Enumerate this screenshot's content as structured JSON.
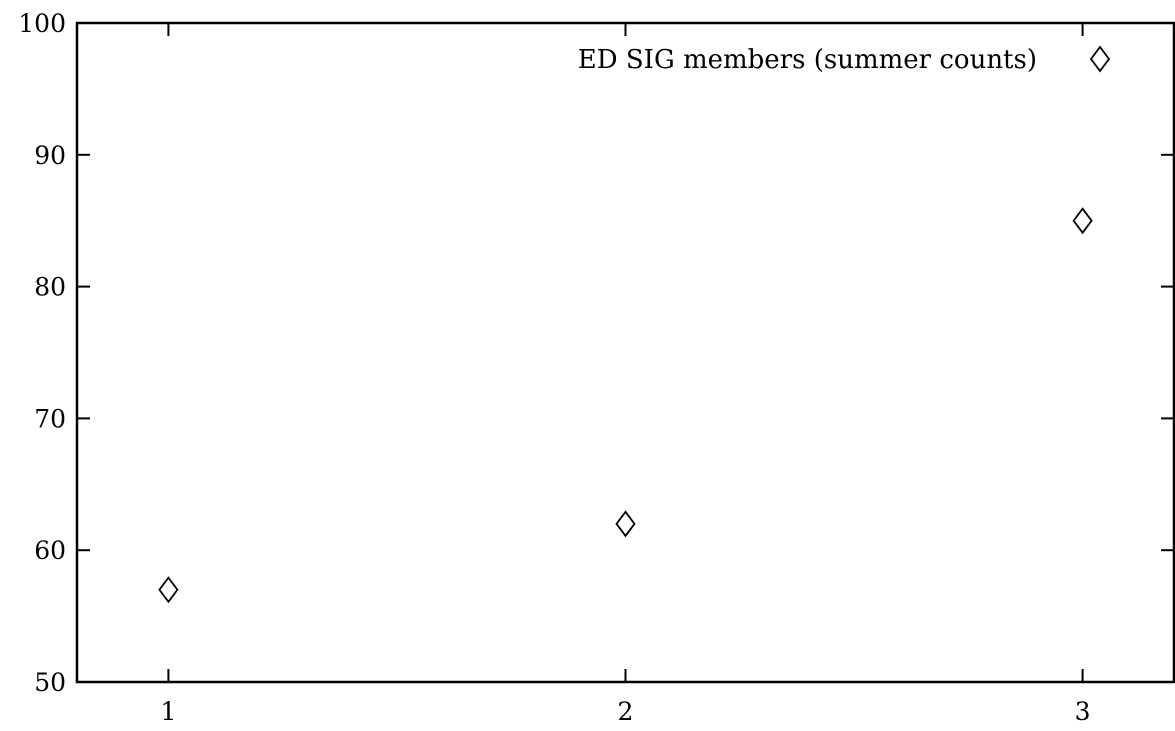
{
  "chart_data": {
    "type": "scatter",
    "title": "",
    "xlabel": "",
    "ylabel": "",
    "xlim": [
      0.8,
      3.2
    ],
    "ylim": [
      50,
      100
    ],
    "x_ticks": [
      1,
      2,
      3
    ],
    "x_tick_labels": [
      "1",
      "2",
      "3"
    ],
    "y_ticks": [
      50,
      60,
      70,
      80,
      90,
      100
    ],
    "y_tick_labels": [
      "50",
      "60",
      "70",
      "80",
      "90",
      "100"
    ],
    "grid": false,
    "legend": {
      "position": "top-right",
      "entries": [
        "ED SIG members (summer counts)"
      ]
    },
    "series": [
      {
        "name": "ED SIG members (summer counts)",
        "marker": "diamond-open",
        "points": [
          {
            "x": 1,
            "y": 57
          },
          {
            "x": 2,
            "y": 62
          },
          {
            "x": 3,
            "y": 85
          }
        ]
      }
    ]
  }
}
